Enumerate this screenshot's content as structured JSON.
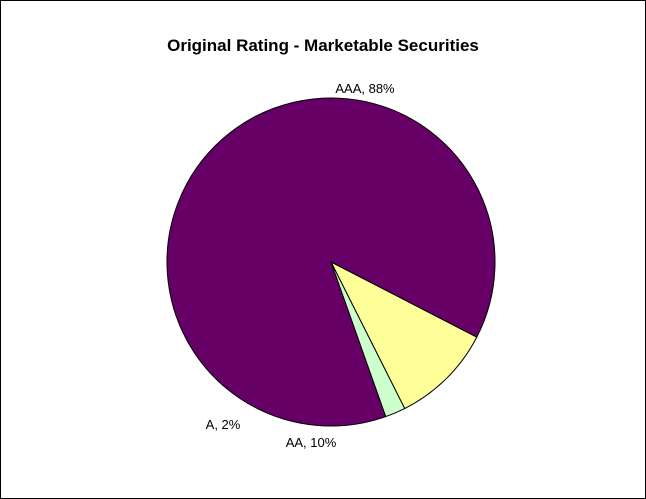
{
  "chart_data": {
    "type": "pie",
    "title": "Original Rating - Marketable Securities",
    "slices": [
      {
        "label": "AAA",
        "value": 88,
        "text": "AAA, 88%",
        "color": "#660066"
      },
      {
        "label": "AA",
        "value": 10,
        "text": "AA, 10%",
        "color": "#FFFF99"
      },
      {
        "label": "A",
        "value": 2,
        "text": "A, 2%",
        "color": "#CCFFCC"
      }
    ],
    "legend": "none",
    "data_labels": "category and percentage"
  }
}
